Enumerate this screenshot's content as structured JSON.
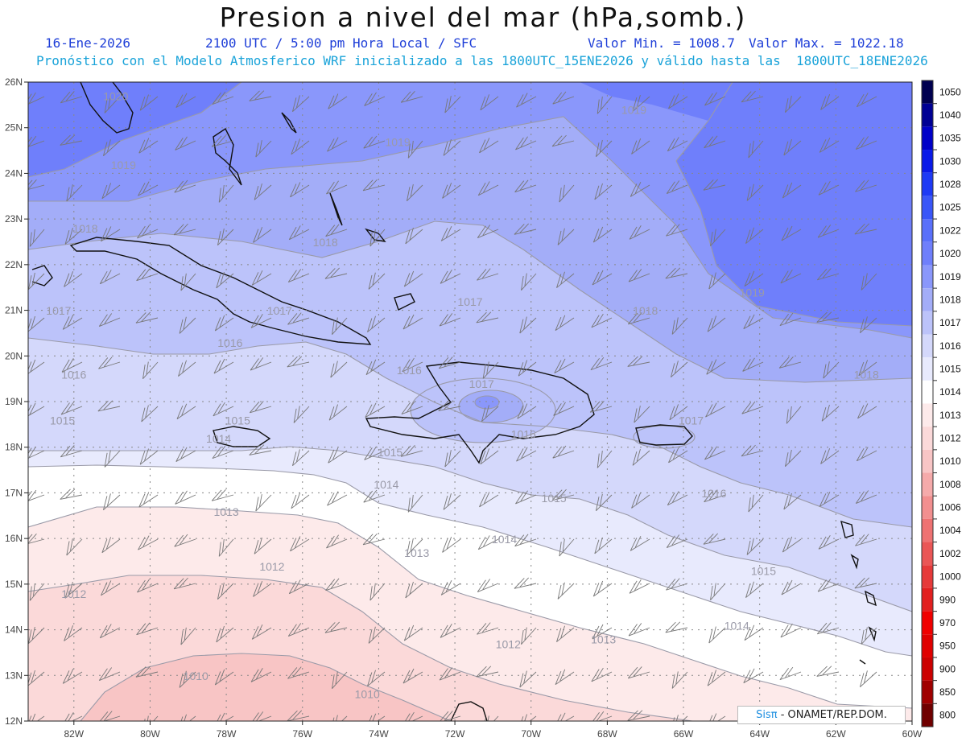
{
  "header": {
    "title": "Presion a nivel del mar (hPa,somb.)",
    "date": "16-Ene-2026",
    "time": "2100 UTC / 5:00 pm Hora Local / SFC",
    "min_value": "Valor Min. = 1008.7",
    "max_value": "Valor Max. = 1022.18",
    "model_info": "Pronóstico con el Modelo Atmosferico WRF inicializado a las 1800UTC_15ENE2026 y válido hasta las  1800UTC_18ENE2026"
  },
  "map": {
    "lon_range": [
      -83.2,
      -60.0
    ],
    "lat_range": [
      12.0,
      26.0
    ],
    "lon_ticks": [
      "82W",
      "80W",
      "78W",
      "76W",
      "74W",
      "72W",
      "70W",
      "68W",
      "66W",
      "64W",
      "62W",
      "60W"
    ],
    "lat_ticks": [
      "26N",
      "25N",
      "24N",
      "23N",
      "22N",
      "21N",
      "20N",
      "19N",
      "18N",
      "17N",
      "16N",
      "15N",
      "14N",
      "13N",
      "12N"
    ],
    "contour_labels": [
      {
        "text": "1020",
        "lon": -80.9,
        "lat": 25.6
      },
      {
        "text": "1019",
        "lon": -67.3,
        "lat": 25.3
      },
      {
        "text": "1019",
        "lon": -73.5,
        "lat": 24.6
      },
      {
        "text": "1019",
        "lon": -80.7,
        "lat": 24.1
      },
      {
        "text": "1018",
        "lon": -81.7,
        "lat": 22.7
      },
      {
        "text": "1018",
        "lon": -75.4,
        "lat": 22.4
      },
      {
        "text": "1017",
        "lon": -82.4,
        "lat": 20.9
      },
      {
        "text": "1017",
        "lon": -76.6,
        "lat": 20.9
      },
      {
        "text": "1017",
        "lon": -71.6,
        "lat": 21.1
      },
      {
        "text": "1018",
        "lon": -67.0,
        "lat": 20.9
      },
      {
        "text": "1019",
        "lon": -64.2,
        "lat": 21.3
      },
      {
        "text": "1016",
        "lon": -77.9,
        "lat": 20.2
      },
      {
        "text": "1016",
        "lon": -82.0,
        "lat": 19.5
      },
      {
        "text": "1016",
        "lon": -73.2,
        "lat": 19.6
      },
      {
        "text": "1017",
        "lon": -71.3,
        "lat": 19.3
      },
      {
        "text": "1018",
        "lon": -61.2,
        "lat": 19.5
      },
      {
        "text": "1015",
        "lon": -82.3,
        "lat": 18.5
      },
      {
        "text": "1015",
        "lon": -77.7,
        "lat": 18.5
      },
      {
        "text": "1014",
        "lon": -78.2,
        "lat": 18.1
      },
      {
        "text": "1015",
        "lon": -73.7,
        "lat": 17.8
      },
      {
        "text": "1016",
        "lon": -70.2,
        "lat": 18.2
      },
      {
        "text": "1017",
        "lon": -65.8,
        "lat": 18.5
      },
      {
        "text": "1014",
        "lon": -73.8,
        "lat": 17.1
      },
      {
        "text": "1015",
        "lon": -69.4,
        "lat": 16.8
      },
      {
        "text": "1016",
        "lon": -65.2,
        "lat": 16.9
      },
      {
        "text": "1013",
        "lon": -78.0,
        "lat": 16.5
      },
      {
        "text": "1014",
        "lon": -70.7,
        "lat": 15.9
      },
      {
        "text": "1013",
        "lon": -73.0,
        "lat": 15.6
      },
      {
        "text": "1012",
        "lon": -76.8,
        "lat": 15.3
      },
      {
        "text": "1015",
        "lon": -63.9,
        "lat": 15.2
      },
      {
        "text": "1012",
        "lon": -82.0,
        "lat": 14.7
      },
      {
        "text": "1014",
        "lon": -64.6,
        "lat": 14.0
      },
      {
        "text": "1013",
        "lon": -68.1,
        "lat": 13.7
      },
      {
        "text": "1012",
        "lon": -70.6,
        "lat": 13.6
      },
      {
        "text": "1010",
        "lon": -78.8,
        "lat": 12.9
      },
      {
        "text": "1010",
        "lon": -74.3,
        "lat": 12.5
      }
    ]
  },
  "colorbar": {
    "levels": [
      {
        "label": "1050",
        "color": "#000050"
      },
      {
        "label": "1040",
        "color": "#000094"
      },
      {
        "label": "1035",
        "color": "#0000c8"
      },
      {
        "label": "1030",
        "color": "#0a1ae8"
      },
      {
        "label": "1028",
        "color": "#1e3af5"
      },
      {
        "label": "1025",
        "color": "#3a56f8"
      },
      {
        "label": "1022",
        "color": "#5a70fa"
      },
      {
        "label": "1020",
        "color": "#6f7ffb"
      },
      {
        "label": "1019",
        "color": "#8a97fb"
      },
      {
        "label": "1018",
        "color": "#a3adf8"
      },
      {
        "label": "1017",
        "color": "#bcc3fa"
      },
      {
        "label": "1016",
        "color": "#d4d8fb"
      },
      {
        "label": "1015",
        "color": "#e8eafd"
      },
      {
        "label": "1014",
        "color": "#ffffff"
      },
      {
        "label": "1013",
        "color": "#fdeaea"
      },
      {
        "label": "1012",
        "color": "#fbd9d9"
      },
      {
        "label": "1010",
        "color": "#f8c5c5"
      },
      {
        "label": "1008",
        "color": "#f5aaaa"
      },
      {
        "label": "1006",
        "color": "#f28f8f"
      },
      {
        "label": "1004",
        "color": "#ee7272"
      },
      {
        "label": "1002",
        "color": "#ea5656"
      },
      {
        "label": "1000",
        "color": "#e63a3a"
      },
      {
        "label": "990",
        "color": "#e22020"
      },
      {
        "label": "970",
        "color": "#f00000"
      },
      {
        "label": "950",
        "color": "#e00000"
      },
      {
        "label": "900",
        "color": "#cc0000"
      },
      {
        "label": "850",
        "color": "#a00000"
      },
      {
        "label": "800",
        "color": "#700000"
      }
    ]
  },
  "credit": {
    "sis": "Sisπ",
    "org": " - ONAMET/REP.DOM."
  }
}
